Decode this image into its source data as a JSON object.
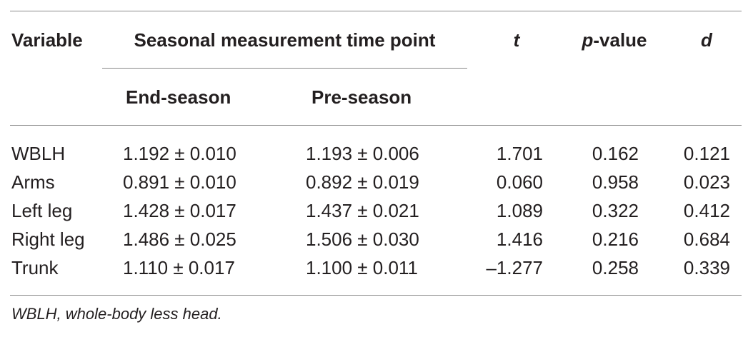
{
  "table": {
    "header": {
      "variable": "Variable",
      "group": "Seasonal measurement time point",
      "t": "t",
      "p_italic": "p",
      "p_rest": "-value",
      "d": "d",
      "end_season": "End-season",
      "pre_season": "Pre-season"
    },
    "rows": [
      {
        "variable": "WBLH",
        "end": "1.192 ± 0.010",
        "pre": "1.193 ± 0.006",
        "t": "1.701",
        "p": "0.162",
        "d": "0.121"
      },
      {
        "variable": "Arms",
        "end": "0.891 ± 0.010",
        "pre": "0.892 ± 0.019",
        "t": "0.060",
        "p": "0.958",
        "d": "0.023"
      },
      {
        "variable": "Left leg",
        "end": "1.428 ± 0.017",
        "pre": "1.437 ± 0.021",
        "t": "1.089",
        "p": "0.322",
        "d": "0.412"
      },
      {
        "variable": "Right leg",
        "end": "1.486 ± 0.025",
        "pre": "1.506 ± 0.030",
        "t": "1.416",
        "p": "0.216",
        "d": "0.684"
      },
      {
        "variable": "Trunk",
        "end": "1.110 ± 0.017",
        "pre": "1.100 ± 0.011",
        "t": "–1.277",
        "p": "0.258",
        "d": "0.339"
      }
    ],
    "footnote": "WBLH, whole-body less head."
  }
}
